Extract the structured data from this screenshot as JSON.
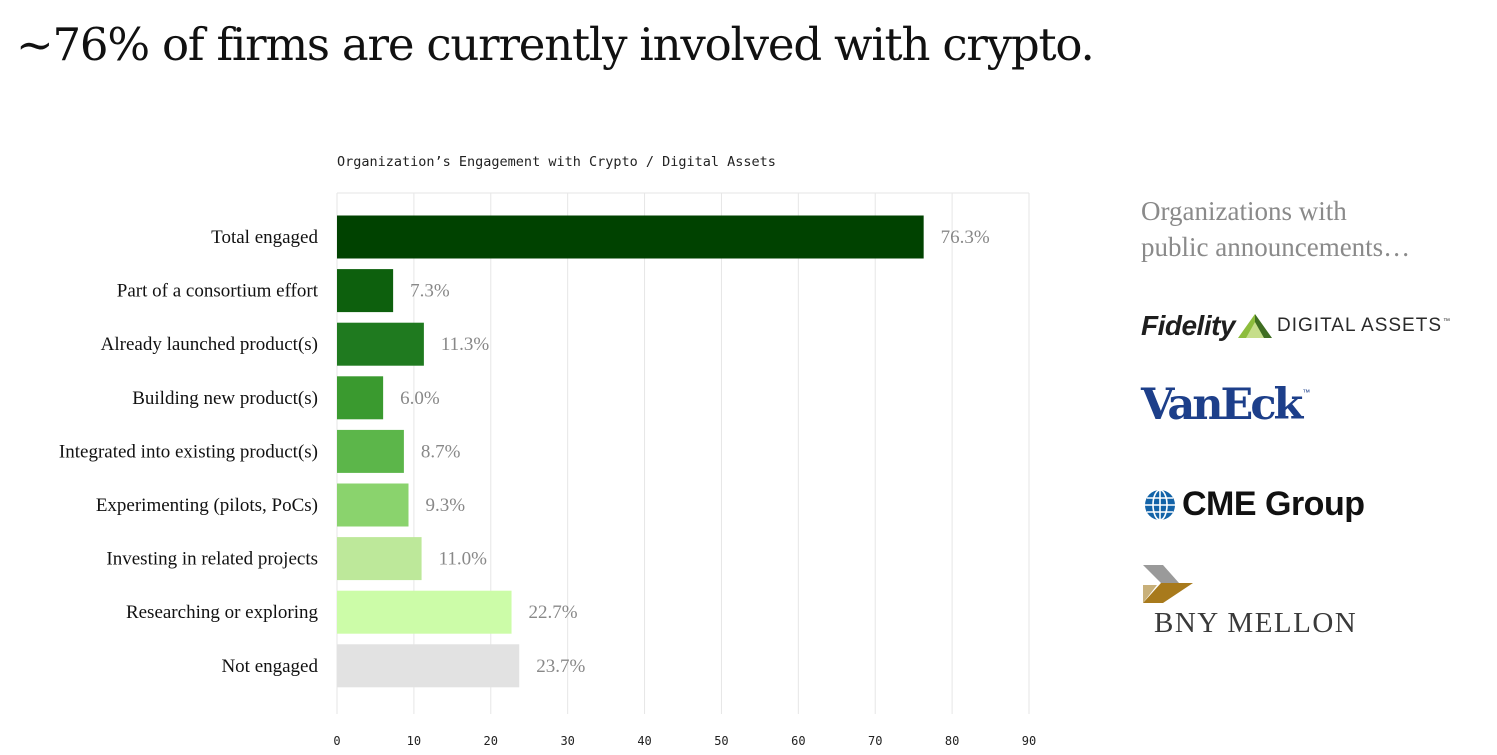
{
  "headline": "~76% of firms are currently involved with crypto.",
  "side_panel": {
    "heading_line1": "Organizations with",
    "heading_line2": "public announcements…",
    "logos": [
      {
        "name": "Fidelity",
        "subtext": "DIGITAL ASSETS",
        "trademark": "™"
      },
      {
        "name": "VanEck",
        "trademark": "™"
      },
      {
        "name": "CME Group"
      },
      {
        "name": "BNY MELLON"
      }
    ]
  },
  "colors": {
    "accent_dark_green": "#004200",
    "grey_bar": "#e2e2e2",
    "value_label": "#888888",
    "vaneck_blue": "#1d3f8a",
    "cme_blue": "#1363a8",
    "bny_gold": "#a87a1c"
  },
  "chart_data": {
    "type": "bar",
    "orientation": "horizontal",
    "title": "Organization’s Engagement with Crypto / Digital Assets",
    "categories": [
      "Total engaged",
      "Part of a consortium effort",
      "Already launched product(s)",
      "Building new product(s)",
      "Integrated into existing product(s)",
      "Experimenting (pilots, PoCs)",
      "Investing in related projects",
      "Researching or exploring",
      "Not engaged"
    ],
    "values": [
      76.3,
      7.3,
      11.3,
      6.0,
      8.7,
      9.3,
      11.0,
      22.7,
      23.7
    ],
    "value_labels": [
      "76.3%",
      "7.3%",
      "11.3%",
      "6.0%",
      "8.7%",
      "9.3%",
      "11.0%",
      "22.7%",
      "23.7%"
    ],
    "bar_colors": [
      "#004200",
      "#0d600d",
      "#1f7a1f",
      "#3a9a2f",
      "#5cb64a",
      "#8ad36d",
      "#bde89a",
      "#ccfca8",
      "#e2e2e2"
    ],
    "xlim": [
      0,
      90
    ],
    "xticks": [
      0,
      10,
      20,
      30,
      40,
      50,
      60,
      70,
      80,
      90
    ],
    "grid": true,
    "legend": "none",
    "xlabel": "",
    "ylabel": ""
  }
}
